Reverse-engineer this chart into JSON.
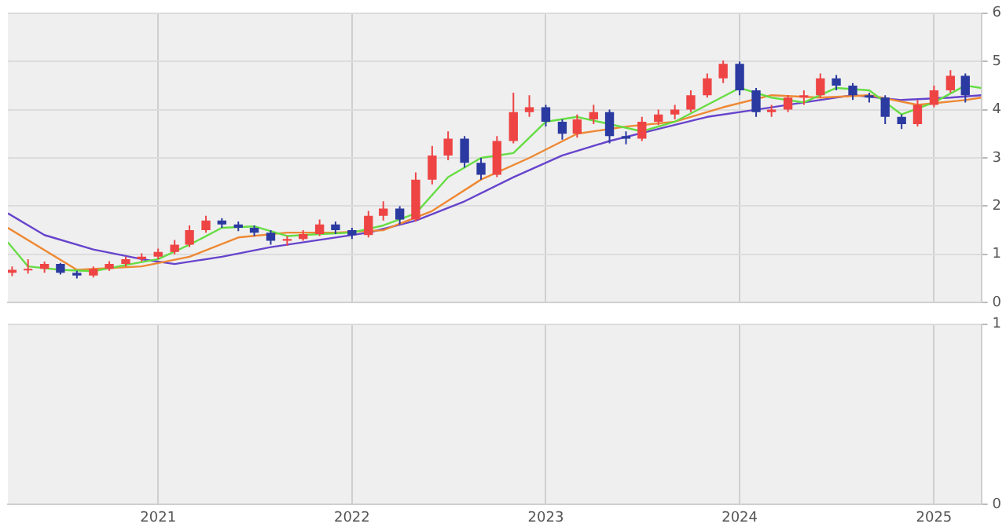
{
  "chart_data": [
    {
      "type": "candlestick",
      "x": [
        "2020-04",
        "2020-05",
        "2020-06",
        "2020-07",
        "2020-08",
        "2020-09",
        "2020-10",
        "2020-11",
        "2020-12",
        "2021-01",
        "2021-02",
        "2021-03",
        "2021-04",
        "2021-05",
        "2021-06",
        "2021-07",
        "2021-08",
        "2021-09",
        "2021-10",
        "2021-11",
        "2021-12",
        "2022-01",
        "2022-02",
        "2022-03",
        "2022-04",
        "2022-05",
        "2022-06",
        "2022-07",
        "2022-08",
        "2022-09",
        "2022-10",
        "2022-11",
        "2022-12",
        "2023-01",
        "2023-02",
        "2023-03",
        "2023-04",
        "2023-05",
        "2023-06",
        "2023-07",
        "2023-08",
        "2023-09",
        "2023-10",
        "2023-11",
        "2023-12",
        "2024-01",
        "2024-02",
        "2024-03",
        "2024-04",
        "2024-05",
        "2024-06",
        "2024-07",
        "2024-08",
        "2024-09",
        "2024-10",
        "2024-11",
        "2024-12",
        "2025-01",
        "2025-02",
        "2025-03"
      ],
      "ohlc": [
        [
          0.62,
          0.75,
          0.55,
          0.68
        ],
        [
          0.68,
          0.9,
          0.6,
          0.7
        ],
        [
          0.7,
          0.85,
          0.62,
          0.8
        ],
        [
          0.8,
          0.82,
          0.58,
          0.62
        ],
        [
          0.62,
          0.66,
          0.5,
          0.56
        ],
        [
          0.56,
          0.75,
          0.52,
          0.7
        ],
        [
          0.7,
          0.86,
          0.66,
          0.8
        ],
        [
          0.8,
          0.95,
          0.75,
          0.9
        ],
        [
          0.9,
          1.02,
          0.85,
          0.95
        ],
        [
          0.95,
          1.12,
          0.9,
          1.05
        ],
        [
          1.05,
          1.3,
          1.0,
          1.2
        ],
        [
          1.2,
          1.6,
          1.15,
          1.5
        ],
        [
          1.5,
          1.8,
          1.45,
          1.7
        ],
        [
          1.7,
          1.75,
          1.55,
          1.62
        ],
        [
          1.62,
          1.68,
          1.48,
          1.55
        ],
        [
          1.55,
          1.6,
          1.38,
          1.45
        ],
        [
          1.45,
          1.5,
          1.2,
          1.28
        ],
        [
          1.28,
          1.38,
          1.18,
          1.32
        ],
        [
          1.32,
          1.5,
          1.28,
          1.42
        ],
        [
          1.42,
          1.72,
          1.38,
          1.62
        ],
        [
          1.62,
          1.68,
          1.42,
          1.5
        ],
        [
          1.5,
          1.55,
          1.32,
          1.4
        ],
        [
          1.4,
          1.9,
          1.35,
          1.8
        ],
        [
          1.8,
          2.1,
          1.7,
          1.95
        ],
        [
          1.95,
          2.0,
          1.62,
          1.72
        ],
        [
          1.72,
          2.7,
          1.68,
          2.55
        ],
        [
          2.55,
          3.25,
          2.45,
          3.05
        ],
        [
          3.05,
          3.55,
          2.95,
          3.4
        ],
        [
          3.4,
          3.45,
          2.8,
          2.9
        ],
        [
          2.9,
          3.0,
          2.55,
          2.65
        ],
        [
          2.65,
          3.45,
          2.6,
          3.35
        ],
        [
          3.35,
          4.35,
          3.3,
          3.95
        ],
        [
          3.95,
          4.3,
          3.85,
          4.05
        ],
        [
          4.05,
          4.1,
          3.65,
          3.75
        ],
        [
          3.75,
          3.8,
          3.38,
          3.5
        ],
        [
          3.5,
          3.9,
          3.42,
          3.8
        ],
        [
          3.8,
          4.1,
          3.7,
          3.95
        ],
        [
          3.95,
          4.0,
          3.3,
          3.45
        ],
        [
          3.45,
          3.55,
          3.28,
          3.4
        ],
        [
          3.4,
          3.85,
          3.35,
          3.75
        ],
        [
          3.75,
          4.0,
          3.68,
          3.9
        ],
        [
          3.9,
          4.1,
          3.8,
          4.0
        ],
        [
          4.0,
          4.4,
          3.95,
          4.3
        ],
        [
          4.3,
          4.75,
          4.25,
          4.65
        ],
        [
          4.65,
          5.02,
          4.55,
          4.95
        ],
        [
          4.95,
          5.0,
          4.3,
          4.4
        ],
        [
          4.4,
          4.45,
          3.85,
          3.95
        ],
        [
          3.95,
          4.1,
          3.85,
          4.0
        ],
        [
          4.0,
          4.3,
          3.95,
          4.25
        ],
        [
          4.25,
          4.4,
          4.1,
          4.3
        ],
        [
          4.3,
          4.75,
          4.25,
          4.65
        ],
        [
          4.65,
          4.72,
          4.4,
          4.5
        ],
        [
          4.5,
          4.55,
          4.2,
          4.3
        ],
        [
          4.3,
          4.35,
          4.15,
          4.25
        ],
        [
          4.25,
          4.3,
          3.7,
          3.85
        ],
        [
          3.85,
          3.9,
          3.6,
          3.7
        ],
        [
          3.7,
          4.2,
          3.65,
          4.1
        ],
        [
          4.1,
          4.5,
          4.05,
          4.4
        ],
        [
          4.4,
          4.82,
          4.35,
          4.7
        ],
        [
          4.7,
          4.75,
          4.15,
          4.3
        ]
      ],
      "colors": [
        "#ee4444",
        "#ee4444",
        "#ee4444",
        "#2a3aa0",
        "#2a3aa0",
        "#ee4444",
        "#ee4444",
        "#ee4444",
        "#ee4444",
        "#ee4444",
        "#ee4444",
        "#ee4444",
        "#ee4444",
        "#2a3aa0",
        "#2a3aa0",
        "#2a3aa0",
        "#2a3aa0",
        "#ee4444",
        "#ee4444",
        "#ee4444",
        "#2a3aa0",
        "#2a3aa0",
        "#ee4444",
        "#ee4444",
        "#2a3aa0",
        "#ee4444",
        "#ee4444",
        "#ee4444",
        "#2a3aa0",
        "#2a3aa0",
        "#ee4444",
        "#ee4444",
        "#ee4444",
        "#2a3aa0",
        "#2a3aa0",
        "#ee4444",
        "#ee4444",
        "#2a3aa0",
        "#2a3aa0",
        "#ee4444",
        "#ee4444",
        "#ee4444",
        "#ee4444",
        "#ee4444",
        "#ee4444",
        "#2a3aa0",
        "#2a3aa0",
        "#ee4444",
        "#ee4444",
        "#ee4444",
        "#ee4444",
        "#2a3aa0",
        "#2a3aa0",
        "#2a3aa0",
        "#2a3aa0",
        "#2a3aa0",
        "#ee4444",
        "#ee4444",
        "#ee4444",
        "#2a3aa0"
      ],
      "series": [
        {
          "type": "line",
          "color": "#66dd44",
          "x": [
            "2020-03-24",
            "2020-05",
            "2020-07",
            "2020-09",
            "2020-11",
            "2021-01",
            "2021-03",
            "2021-05",
            "2021-07",
            "2021-09",
            "2021-11",
            "2022-01",
            "2022-03",
            "2022-05",
            "2022-07",
            "2022-09",
            "2022-11",
            "2023-01",
            "2023-03",
            "2023-05",
            "2023-07",
            "2023-09",
            "2023-11",
            "2024-01",
            "2024-03",
            "2024-05",
            "2024-07",
            "2024-09",
            "2024-11",
            "2025-01",
            "2025-03",
            "2025-03-31"
          ],
          "values": [
            1.25,
            0.75,
            0.68,
            0.65,
            0.78,
            0.9,
            1.2,
            1.55,
            1.58,
            1.38,
            1.42,
            1.45,
            1.6,
            1.85,
            2.6,
            3.0,
            3.1,
            3.75,
            3.85,
            3.7,
            3.55,
            3.75,
            4.1,
            4.45,
            4.25,
            4.15,
            4.45,
            4.4,
            3.9,
            4.15,
            4.5,
            4.45
          ]
        },
        {
          "type": "line",
          "color": "#ee8833",
          "x": [
            "2020-03-24",
            "2020-08",
            "2020-12",
            "2021-03",
            "2021-06",
            "2021-09",
            "2021-12",
            "2022-03",
            "2022-06",
            "2022-09",
            "2022-12",
            "2023-03",
            "2023-06",
            "2023-09",
            "2023-12",
            "2024-03",
            "2024-06",
            "2024-09",
            "2024-12",
            "2025-03",
            "2025-03-31"
          ],
          "values": [
            1.55,
            0.68,
            0.75,
            0.95,
            1.35,
            1.45,
            1.45,
            1.5,
            1.9,
            2.55,
            3.0,
            3.5,
            3.65,
            3.75,
            4.05,
            4.3,
            4.25,
            4.3,
            4.1,
            4.2,
            4.25
          ]
        },
        {
          "type": "line",
          "color": "#6644cc",
          "x": [
            "2020-03-24",
            "2020-06",
            "2020-09",
            "2020-12",
            "2021-02",
            "2021-05",
            "2021-08",
            "2021-11",
            "2022-02",
            "2022-05",
            "2022-08",
            "2022-11",
            "2023-02",
            "2023-05",
            "2023-08",
            "2023-11",
            "2024-02",
            "2024-05",
            "2024-08",
            "2024-11",
            "2025-02",
            "2025-03-31"
          ],
          "values": [
            1.85,
            1.4,
            1.1,
            0.9,
            0.8,
            0.95,
            1.15,
            1.3,
            1.45,
            1.7,
            2.1,
            2.6,
            3.05,
            3.35,
            3.6,
            3.85,
            4.0,
            4.15,
            4.3,
            4.2,
            4.25,
            4.3
          ]
        }
      ],
      "xlim": [
        "2020-03-24",
        "2025-03-31"
      ],
      "xticks": [
        {
          "value": "2021-01-01",
          "label": null
        },
        {
          "value": "2022-01-01",
          "label": null
        },
        {
          "value": "2023-01-01",
          "label": null
        },
        {
          "value": "2024-01-01",
          "label": null
        },
        {
          "value": "2025-01-01",
          "label": null
        }
      ],
      "ylim": [
        0,
        6
      ],
      "yticks": [
        0,
        1,
        2,
        3,
        4,
        5,
        6
      ],
      "grid": true,
      "tick_labels": "y"
    },
    {
      "type": "bar",
      "xlim": [
        "2020-03-24",
        "2025-03-31"
      ],
      "xticks": [
        {
          "value": "2021-01-01",
          "label": "2021"
        },
        {
          "value": "2022-01-01",
          "label": "2022"
        },
        {
          "value": "2023-01-01",
          "label": "2023"
        },
        {
          "value": "2024-01-01",
          "label": "2024"
        },
        {
          "value": "2025-01-01",
          "label": "2025"
        }
      ],
      "ylim": [
        0,
        1
      ],
      "yticks": [
        0,
        1
      ],
      "grid": true
    }
  ]
}
